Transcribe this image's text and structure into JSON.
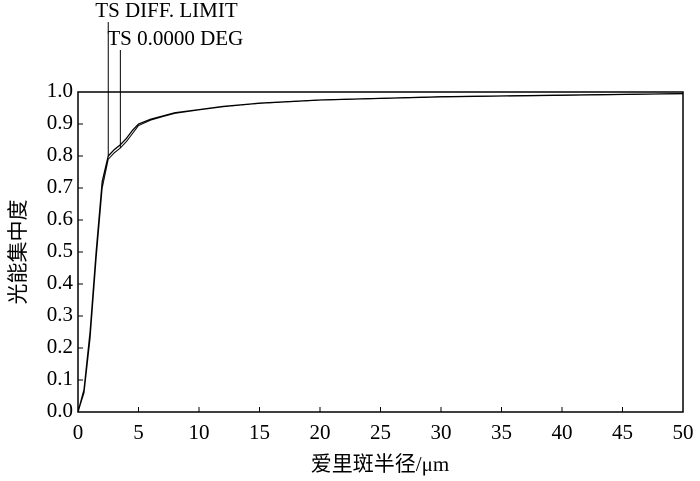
{
  "chart_data": {
    "type": "line",
    "x_label": "爱里斑半径/μm",
    "y_label": "光能集中度",
    "x": [
      0,
      0.5,
      1,
      1.5,
      2,
      2.5,
      3,
      3.5,
      4,
      4.5,
      5,
      6,
      7,
      8,
      10,
      12,
      15,
      20,
      25,
      30,
      40,
      50
    ],
    "series": [
      {
        "name": "TS DIFF. LIMIT",
        "color": "#000000",
        "values": [
          0,
          0.07,
          0.25,
          0.5,
          0.72,
          0.8,
          0.82,
          0.835,
          0.855,
          0.88,
          0.9,
          0.915,
          0.925,
          0.935,
          0.945,
          0.955,
          0.965,
          0.975,
          0.98,
          0.985,
          0.99,
          0.995
        ]
      },
      {
        "name": "TS 0.0000 DEG",
        "color": "#000000",
        "values": [
          0,
          0.06,
          0.23,
          0.48,
          0.7,
          0.79,
          0.81,
          0.825,
          0.845,
          0.87,
          0.895,
          0.912,
          0.923,
          0.933,
          0.944,
          0.954,
          0.965,
          0.975,
          0.98,
          0.985,
          0.99,
          0.995
        ]
      }
    ],
    "xlim": [
      0,
      50
    ],
    "ylim": [
      0,
      1
    ],
    "xticks": [
      0,
      5,
      10,
      15,
      20,
      25,
      30,
      35,
      40,
      45,
      50
    ],
    "yticks": [
      {
        "value": 0,
        "label": "0.0"
      },
      0.1,
      0.2,
      0.3,
      0.4,
      0.5,
      0.6,
      0.7,
      0.8,
      0.9,
      {
        "value": 1,
        "label": "1.0"
      }
    ]
  }
}
